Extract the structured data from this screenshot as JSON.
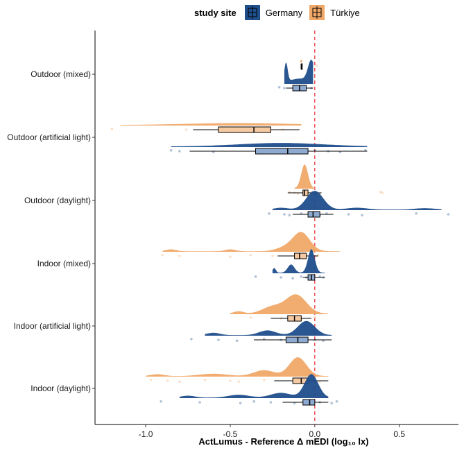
{
  "legend": {
    "title": "study site",
    "entries": [
      {
        "label": "Germany",
        "color": "#1f4e8c"
      },
      {
        "label": "Türkiye",
        "color": "#f0a868"
      }
    ]
  },
  "chart_data": {
    "type": "raincloud",
    "orientation": "horizontal",
    "xlabel": "ActLumus - Reference Δ mEDI (log₁₀ lx)",
    "xlim": [
      -1.3,
      0.85
    ],
    "xticks": [
      -1.0,
      -0.5,
      0.0,
      0.5
    ],
    "xtick_labels": [
      "-1.0",
      "-0.5",
      "0.0",
      "0.5"
    ],
    "reference_line": {
      "x": 0.0,
      "color": "#e8242c",
      "style": "dashed"
    },
    "grid": false,
    "legend_position": "top",
    "categories": [
      "Outdoor (mixed)",
      "Outdoor (artificial light)",
      "Outdoor (daylight)",
      "Indoor (mixed)",
      "Indoor (artificial light)",
      "Indoor (daylight)"
    ],
    "series": [
      {
        "name": "Türkiye",
        "color": "#f0a868",
        "box_fill": "#f5c9a2",
        "groups": [
          {
            "category": "Outdoor (mixed)",
            "box": {
              "min": -0.08,
              "q1": -0.08,
              "median": -0.08,
              "q3": -0.08,
              "max": -0.08
            },
            "density": {
              "range": [
                -0.085,
                -0.075
              ],
              "peaks": [
                {
                  "x": -0.08,
                  "h": 0.1,
                  "w": 0.004
                }
              ]
            },
            "points": [
              0.01
            ]
          },
          {
            "category": "Outdoor (artificial light)",
            "box": {
              "min": -0.72,
              "q1": -0.57,
              "median": -0.36,
              "q3": -0.26,
              "max": -0.09
            },
            "density": {
              "range": [
                -1.15,
                -0.08
              ],
              "peaks": [
                {
                  "x": -0.45,
                  "h": 0.08,
                  "w": 0.3
                }
              ]
            },
            "points": [
              -1.2,
              -0.76,
              -0.52,
              -0.3,
              -0.19
            ]
          },
          {
            "category": "Outdoor (daylight)",
            "box": {
              "min": -0.16,
              "q1": -0.07,
              "median": -0.06,
              "q3": -0.04,
              "max": 0.04
            },
            "density": {
              "range": [
                -0.12,
                0.0
              ],
              "peaks": [
                {
                  "x": -0.06,
                  "h": 1.0,
                  "w": 0.02
                }
              ]
            },
            "points": [
              -0.15,
              -0.12,
              -0.1,
              -0.02,
              0.01,
              0.03,
              0.39,
              0.4
            ]
          },
          {
            "category": "Indoor (mixed)",
            "box": {
              "min": -0.22,
              "q1": -0.12,
              "median": -0.09,
              "q3": -0.05,
              "max": 0.02
            },
            "density": {
              "range": [
                -0.9,
                0.15
              ],
              "peaks": [
                {
                  "x": -0.85,
                  "h": 0.08,
                  "w": 0.03
                },
                {
                  "x": -0.5,
                  "h": 0.08,
                  "w": 0.03
                },
                {
                  "x": -0.18,
                  "h": 0.15,
                  "w": 0.05
                },
                {
                  "x": -0.08,
                  "h": 0.8,
                  "w": 0.05
                }
              ]
            },
            "points": [
              -0.9,
              -0.8,
              -0.5,
              -0.38,
              -0.25,
              -0.1,
              0.02
            ]
          },
          {
            "category": "Indoor (artificial light)",
            "box": {
              "min": -0.26,
              "q1": -0.16,
              "median": -0.12,
              "q3": -0.08,
              "max": -0.02
            },
            "density": {
              "range": [
                -0.5,
                0.08
              ],
              "peaks": [
                {
                  "x": -0.45,
                  "h": 0.1,
                  "w": 0.03
                },
                {
                  "x": -0.25,
                  "h": 0.3,
                  "w": 0.06
                },
                {
                  "x": -0.11,
                  "h": 0.8,
                  "w": 0.06
                }
              ]
            },
            "points": [
              -0.38,
              -0.2,
              -0.08,
              0.0
            ]
          },
          {
            "category": "Indoor (daylight)",
            "box": {
              "min": -0.24,
              "q1": -0.13,
              "median": -0.08,
              "q3": -0.04,
              "max": 0.08
            },
            "density": {
              "range": [
                -1.0,
                0.08
              ],
              "peaks": [
                {
                  "x": -0.93,
                  "h": 0.08,
                  "w": 0.04
                },
                {
                  "x": -0.6,
                  "h": 0.1,
                  "w": 0.08
                },
                {
                  "x": -0.3,
                  "h": 0.25,
                  "w": 0.06
                },
                {
                  "x": -0.1,
                  "h": 0.8,
                  "w": 0.05
                }
              ]
            },
            "points": [
              -0.97,
              -0.87,
              -0.8,
              -0.65,
              -0.5,
              -0.45,
              -0.3,
              -0.05,
              0.03
            ]
          }
        ]
      },
      {
        "name": "Germany",
        "color": "#1f4e8c",
        "box_fill": "#8eaad0",
        "groups": [
          {
            "category": "Outdoor (mixed)",
            "box": {
              "min": -0.17,
              "q1": -0.13,
              "median": -0.09,
              "q3": -0.05,
              "max": -0.01
            },
            "density": {
              "range": [
                -0.18,
                -0.01
              ],
              "peaks": [
                {
                  "x": -0.17,
                  "h": 0.8,
                  "w": 0.01
                },
                {
                  "x": -0.02,
                  "h": 0.9,
                  "w": 0.02
                },
                {
                  "x": -0.09,
                  "h": 0.2,
                  "w": 0.06
                }
              ]
            },
            "points": [
              -0.21,
              -0.18,
              -0.1,
              -0.06,
              -0.02
            ]
          },
          {
            "category": "Outdoor (artificial light)",
            "box": {
              "min": -0.74,
              "q1": -0.35,
              "median": -0.16,
              "q3": -0.04,
              "max": 0.31
            },
            "density": {
              "range": [
                -0.85,
                0.31
              ],
              "peaks": [
                {
                  "x": -0.2,
                  "h": 0.15,
                  "w": 0.25
                }
              ]
            },
            "points": [
              -0.85,
              -0.8,
              -0.6,
              -0.3,
              -0.2,
              -0.1,
              0.0,
              0.08,
              0.15,
              0.3
            ]
          },
          {
            "category": "Outdoor (daylight)",
            "box": {
              "min": -0.13,
              "q1": -0.04,
              "median": -0.01,
              "q3": 0.03,
              "max": 0.11
            },
            "density": {
              "range": [
                -0.25,
                0.75
              ],
              "peaks": [
                {
                  "x": -0.2,
                  "h": 0.08,
                  "w": 0.04
                },
                {
                  "x": 0.0,
                  "h": 0.8,
                  "w": 0.05
                },
                {
                  "x": 0.25,
                  "h": 0.08,
                  "w": 0.06
                },
                {
                  "x": 0.65,
                  "h": 0.06,
                  "w": 0.06
                }
              ]
            },
            "points": [
              -0.27,
              -0.18,
              -0.15,
              -0.08,
              -0.02,
              0.03,
              0.07,
              0.2,
              0.28,
              0.6,
              0.79
            ]
          },
          {
            "category": "Indoor (mixed)",
            "box": {
              "min": -0.07,
              "q1": -0.04,
              "median": -0.02,
              "q3": 0.0,
              "max": 0.06
            },
            "density": {
              "range": [
                -0.25,
                0.06
              ],
              "peaks": [
                {
                  "x": -0.24,
                  "h": 0.2,
                  "w": 0.01
                },
                {
                  "x": -0.14,
                  "h": 0.35,
                  "w": 0.02
                },
                {
                  "x": -0.02,
                  "h": 1.0,
                  "w": 0.02
                }
              ]
            },
            "points": [
              -0.35,
              -0.2,
              -0.13,
              -0.08,
              -0.05,
              -0.01,
              0.03,
              0.05
            ]
          },
          {
            "category": "Indoor (artificial light)",
            "box": {
              "min": -0.36,
              "q1": -0.17,
              "median": -0.1,
              "q3": -0.04,
              "max": 0.1
            },
            "density": {
              "range": [
                -0.65,
                0.1
              ],
              "peaks": [
                {
                  "x": -0.6,
                  "h": 0.1,
                  "w": 0.04
                },
                {
                  "x": -0.28,
                  "h": 0.2,
                  "w": 0.05
                },
                {
                  "x": -0.05,
                  "h": 0.6,
                  "w": 0.05
                }
              ]
            },
            "points": [
              -0.73,
              -0.57,
              -0.46,
              -0.3,
              -0.2,
              -0.12,
              -0.08,
              0.0,
              0.05
            ]
          },
          {
            "category": "Indoor (daylight)",
            "box": {
              "min": -0.19,
              "q1": -0.07,
              "median": -0.03,
              "q3": 0.0,
              "max": 0.08
            },
            "density": {
              "range": [
                -0.8,
                0.08
              ],
              "peaks": [
                {
                  "x": -0.75,
                  "h": 0.08,
                  "w": 0.04
                },
                {
                  "x": -0.45,
                  "h": 0.12,
                  "w": 0.06
                },
                {
                  "x": -0.2,
                  "h": 0.2,
                  "w": 0.06
                },
                {
                  "x": -0.02,
                  "h": 1.0,
                  "w": 0.04
                }
              ]
            },
            "points": [
              -0.91,
              -0.68,
              -0.44,
              -0.36,
              -0.26,
              -0.12,
              -0.05,
              0.03,
              0.1,
              0.13
            ]
          }
        ]
      }
    ]
  }
}
